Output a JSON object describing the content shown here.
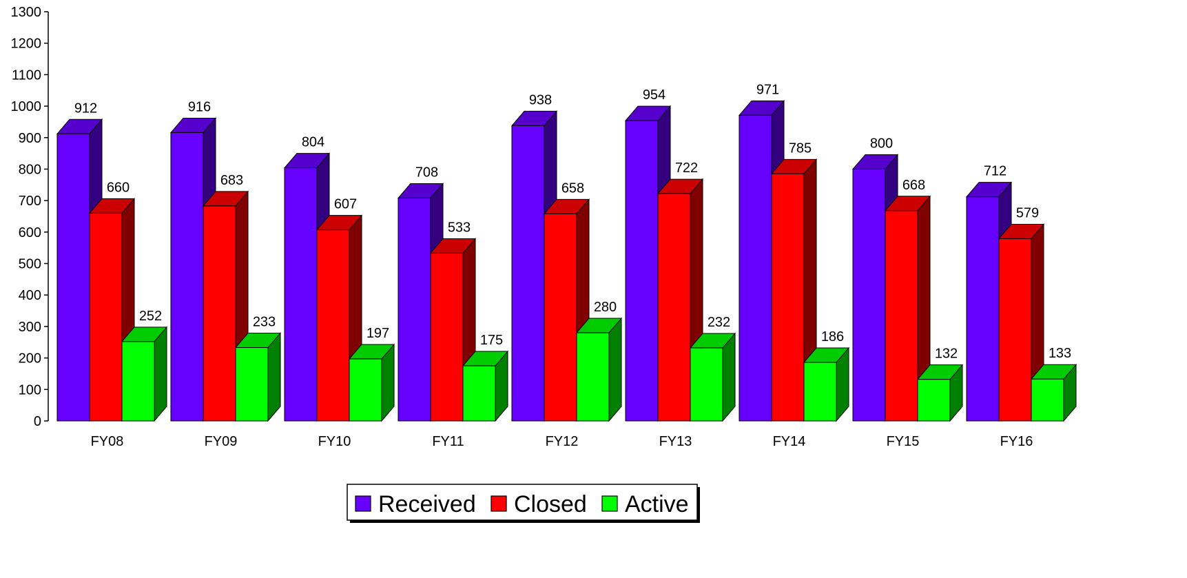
{
  "chart_data": {
    "type": "bar",
    "style": "3d-clustered",
    "categories": [
      "FY08",
      "FY09",
      "FY10",
      "FY11",
      "FY12",
      "FY13",
      "FY14",
      "FY15",
      "FY16"
    ],
    "series": [
      {
        "name": "Received",
        "color": "#6600ff",
        "values": [
          912,
          916,
          804,
          708,
          938,
          954,
          971,
          800,
          712
        ]
      },
      {
        "name": "Closed",
        "color": "#ff0000",
        "values": [
          660,
          683,
          607,
          533,
          658,
          722,
          785,
          668,
          579
        ]
      },
      {
        "name": "Active",
        "color": "#00ff00",
        "values": [
          252,
          233,
          197,
          175,
          280,
          232,
          186,
          132,
          133
        ]
      }
    ],
    "ylim": [
      0,
      1300
    ],
    "yticks": [
      0,
      100,
      200,
      300,
      400,
      500,
      600,
      700,
      800,
      900,
      1000,
      1100,
      1200,
      1300
    ],
    "grid": false,
    "legend_position": "bottom-center",
    "data_labels": true
  }
}
